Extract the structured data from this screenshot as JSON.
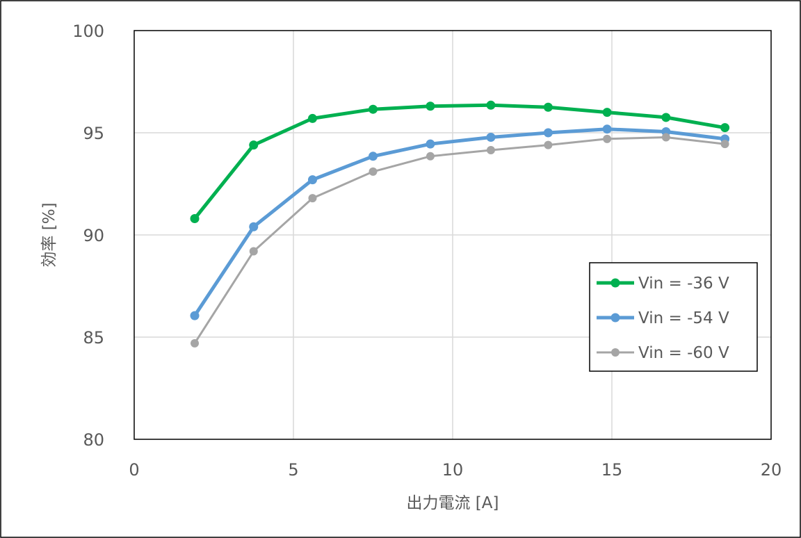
{
  "chart_data": {
    "type": "line",
    "title": "",
    "xlabel": "出力電流 [A]",
    "ylabel": "効率 [%]",
    "xlim": [
      0,
      20
    ],
    "ylim": [
      80,
      100
    ],
    "x_ticks": [
      "0",
      "5",
      "10",
      "15",
      "20"
    ],
    "y_ticks": [
      "80",
      "85",
      "90",
      "95",
      "100"
    ],
    "grid": true,
    "legend_position": "right",
    "x": [
      1.9,
      3.75,
      5.6,
      7.5,
      9.3,
      11.2,
      13.0,
      14.85,
      16.7,
      18.55
    ],
    "series": [
      {
        "name": "Vin = -36 V",
        "color": "#00b050",
        "values": [
          90.8,
          94.4,
          95.7,
          96.15,
          96.3,
          96.35,
          96.25,
          96.0,
          95.75,
          95.25
        ]
      },
      {
        "name": "Vin = -54 V",
        "color": "#5b9bd5",
        "values": [
          86.05,
          90.4,
          92.7,
          93.85,
          94.45,
          94.78,
          95.0,
          95.18,
          95.05,
          94.7
        ]
      },
      {
        "name": "Vin = -60 V",
        "color": "#a5a5a5",
        "values": [
          84.7,
          89.2,
          91.8,
          93.1,
          93.85,
          94.15,
          94.4,
          94.7,
          94.78,
          94.45
        ]
      }
    ]
  }
}
